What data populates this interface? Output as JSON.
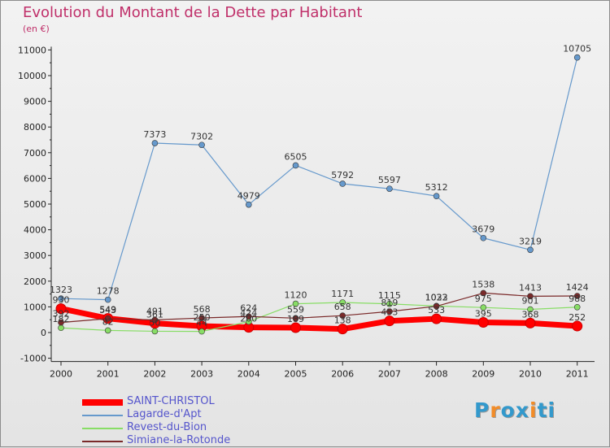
{
  "title": "Evolution du Montant de la Dette par Habitant",
  "unit_label": "(en €)",
  "brand": {
    "text": "Proxiti",
    "colors": [
      "#3399cc",
      "#f28c28",
      "#3399cc",
      "#3399cc",
      "#f28c28",
      "#3399cc",
      "#3399cc"
    ]
  },
  "chart_data": {
    "type": "line",
    "title": "Evolution du Montant de la Dette par Habitant",
    "ylabel": "(en €)",
    "xlabel": "",
    "x": [
      "2000",
      "2001",
      "2002",
      "2003",
      "2004",
      "2005",
      "2006",
      "2007",
      "2008",
      "2009",
      "2010",
      "2011"
    ],
    "ylim": [
      -1000,
      11000
    ],
    "yticks": [
      -1000,
      0,
      1000,
      2000,
      3000,
      4000,
      5000,
      6000,
      7000,
      8000,
      9000,
      10000,
      11000
    ],
    "grid": false,
    "legend": "bottom-left",
    "series": [
      {
        "name": "SAINT-CHRISTOL",
        "color": "#ff0000",
        "width": 7,
        "values": [
          930,
          549,
          361,
          250,
          200,
          189,
          138,
          453,
          533,
          395,
          368,
          252
        ],
        "labels": [
          930,
          549,
          361,
          250,
          200,
          189,
          138,
          453,
          533,
          395,
          368,
          252
        ]
      },
      {
        "name": "Lagarde-d'Apt",
        "color": "#6699cc",
        "width": 1.2,
        "values": [
          1323,
          1278,
          7373,
          7302,
          4979,
          6505,
          5792,
          5597,
          5312,
          3679,
          3219,
          10705
        ],
        "labels": [
          1323,
          1278,
          7373,
          7302,
          4979,
          6505,
          5792,
          5597,
          5312,
          3679,
          3219,
          10705
        ]
      },
      {
        "name": "Revest-du-Bion",
        "color": "#88dd66",
        "width": 1.2,
        "values": [
          182,
          82,
          50,
          44,
          424,
          1120,
          1171,
          1115,
          1033,
          975,
          901,
          988
        ],
        "labels": [
          182,
          82,
          50,
          44,
          424,
          1120,
          1171,
          1115,
          1033,
          975,
          901,
          988
        ]
      },
      {
        "name": "Simiane-la-Rotonde",
        "color": "#7a2a2a",
        "width": 1.2,
        "values": [
          392,
          543,
          491,
          568,
          624,
          559,
          658,
          819,
          1022,
          1538,
          1413,
          1424
        ],
        "labels": [
          392,
          543,
          491,
          568,
          624,
          559,
          658,
          819,
          1022,
          1538,
          1413,
          1424
        ]
      }
    ]
  }
}
